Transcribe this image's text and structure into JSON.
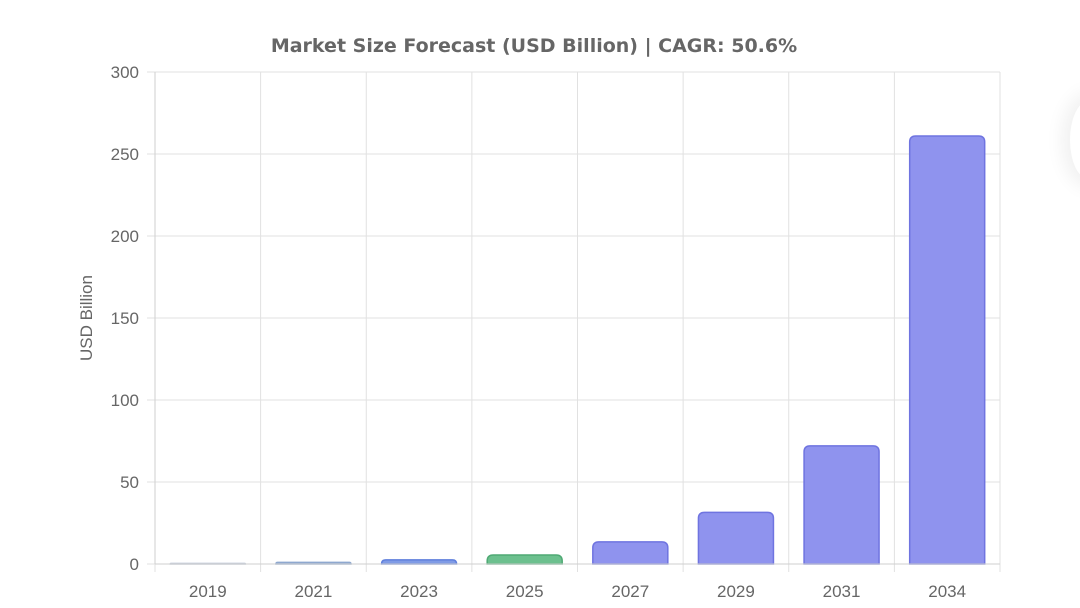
{
  "chart_data": {
    "type": "bar",
    "title": "Market Size Forecast (USD Billion) | CAGR: 50.6%",
    "xlabel": "",
    "ylabel": "USD Billion",
    "categories": [
      "2019",
      "2021",
      "2023",
      "2025",
      "2027",
      "2029",
      "2031",
      "2034"
    ],
    "values": [
      0.4,
      1.0,
      2.5,
      5.5,
      13.5,
      31.5,
      72.0,
      261.0
    ],
    "ylim": [
      0,
      300
    ],
    "yticks": [
      "0",
      "50",
      "100",
      "150",
      "200",
      "250",
      "300"
    ],
    "ytick_values": [
      0,
      50,
      100,
      150,
      200,
      250,
      300
    ],
    "grid": true,
    "legend": "none",
    "bar_fill_colors": [
      "#dfe5ee",
      "#a9bfdc",
      "#7f9be6",
      "#6cc08e",
      "#8f93ee",
      "#8f93ee",
      "#8f93ee",
      "#8f93ee"
    ],
    "bar_stroke_colors": [
      "#c5cedb",
      "#8ea8cf",
      "#5f7fdc",
      "#4fa974",
      "#6f74e0",
      "#6f74e0",
      "#6f74e0",
      "#6f74e0"
    ]
  }
}
